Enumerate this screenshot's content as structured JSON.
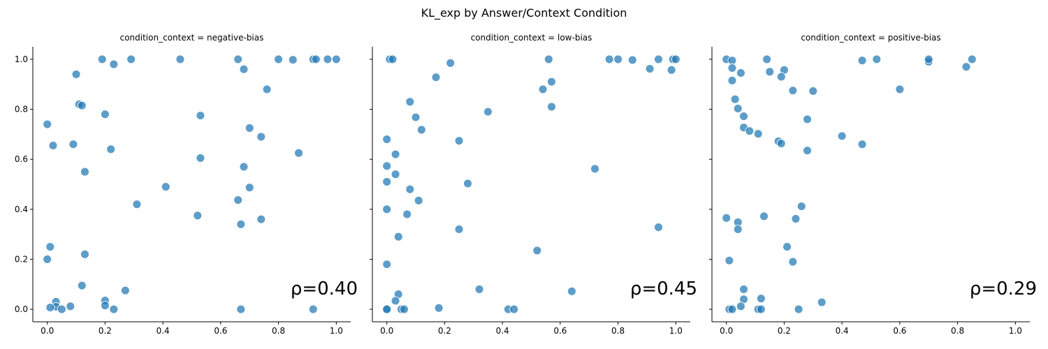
{
  "title": "KL_exp by Answer/Context Condition",
  "colors": {
    "marker": "#1f77b4"
  },
  "chart_data": [
    {
      "type": "scatter",
      "title": "condition_context = negative-bias",
      "xlim": [
        -0.05,
        1.05
      ],
      "ylim": [
        -0.05,
        1.05
      ],
      "xticks": [
        "0.0",
        "0.2",
        "0.4",
        "0.6",
        "0.8",
        "1.0"
      ],
      "yticks": [
        "0.0",
        "0.2",
        "0.4",
        "0.6",
        "0.8",
        "1.0"
      ],
      "annotation": "ρ=0.40",
      "x": [
        0.19,
        0.29,
        0.46,
        0.66,
        0.8,
        0.85,
        0.92,
        0.93,
        0.97,
        1.0,
        0.23,
        0.1,
        0.68,
        0.76,
        0.11,
        0.12,
        0.2,
        0.53,
        0.0,
        0.7,
        0.74,
        0.02,
        0.09,
        0.22,
        0.87,
        0.53,
        0.68,
        0.13,
        0.41,
        0.7,
        0.66,
        0.31,
        0.52,
        0.74,
        0.67,
        0.01,
        0.13,
        0.0,
        0.12,
        0.27,
        0.2,
        0.03,
        0.03,
        0.2,
        0.08,
        0.01,
        0.05,
        0.23,
        0.67,
        0.92
      ],
      "y": [
        1.0,
        1.0,
        1.0,
        1.0,
        1.0,
        0.998,
        1.0,
        1.0,
        1.0,
        1.0,
        0.98,
        0.94,
        0.96,
        0.88,
        0.82,
        0.815,
        0.78,
        0.775,
        0.74,
        0.725,
        0.69,
        0.655,
        0.66,
        0.64,
        0.625,
        0.605,
        0.57,
        0.55,
        0.49,
        0.487,
        0.437,
        0.42,
        0.375,
        0.36,
        0.34,
        0.25,
        0.22,
        0.2,
        0.095,
        0.075,
        0.035,
        0.03,
        0.01,
        0.015,
        0.012,
        0.007,
        0.0,
        0.0,
        0.0,
        0.0
      ]
    },
    {
      "type": "scatter",
      "title": "condition_context = low-bias",
      "xlim": [
        -0.05,
        1.05
      ],
      "ylim": [
        -0.05,
        1.05
      ],
      "xticks": [
        "0.0",
        "0.2",
        "0.4",
        "0.6",
        "0.8",
        "1.0"
      ],
      "yticks": [
        "0.0",
        "0.2",
        "0.4",
        "0.6",
        "0.8",
        "1.0"
      ],
      "annotation": "ρ=0.45",
      "x": [
        0.01,
        0.02,
        0.22,
        0.56,
        0.77,
        0.8,
        0.85,
        0.91,
        0.94,
        0.99,
        1.0,
        0.985,
        0.17,
        0.57,
        0.54,
        0.57,
        0.08,
        0.35,
        0.1,
        0.12,
        0.0,
        0.25,
        0.03,
        0.03,
        0.72,
        0.0,
        0.0,
        0.28,
        0.08,
        0.11,
        0.0,
        0.07,
        0.25,
        0.04,
        0.94,
        0.52,
        0.0,
        0.32,
        0.64,
        0.04,
        0.03,
        0.18,
        0.42,
        0.44,
        0.0,
        0.0,
        0.05,
        0.06
      ],
      "y": [
        1.0,
        1.0,
        0.985,
        1.0,
        1.0,
        1.0,
        0.997,
        0.962,
        1.0,
        1.0,
        1.0,
        0.957,
        0.928,
        0.91,
        0.88,
        0.81,
        0.83,
        0.79,
        0.768,
        0.718,
        0.68,
        0.674,
        0.62,
        0.54,
        0.562,
        0.573,
        0.51,
        0.503,
        0.48,
        0.435,
        0.4,
        0.38,
        0.32,
        0.29,
        0.328,
        0.235,
        0.18,
        0.08,
        0.072,
        0.06,
        0.034,
        0.005,
        0.0,
        0.0,
        0.0,
        0.0,
        0.0,
        0.0
      ]
    },
    {
      "type": "scatter",
      "title": "condition_context = positive-bias",
      "xlim": [
        -0.05,
        1.05
      ],
      "ylim": [
        -0.05,
        1.05
      ],
      "xticks": [
        "0.0",
        "0.2",
        "0.4",
        "0.6",
        "0.8",
        "1.0"
      ],
      "yticks": [
        "0.0",
        "0.2",
        "0.4",
        "0.6",
        "0.8",
        "1.0"
      ],
      "annotation": "ρ=0.29",
      "x": [
        0.0,
        0.02,
        0.14,
        0.47,
        0.52,
        0.7,
        0.7,
        0.85,
        0.02,
        0.05,
        0.15,
        0.2,
        0.19,
        0.83,
        0.02,
        0.23,
        0.3,
        0.6,
        0.03,
        0.04,
        0.06,
        0.06,
        0.08,
        0.11,
        0.4,
        0.28,
        0.18,
        0.19,
        0.47,
        0.28,
        0.0,
        0.04,
        0.04,
        0.13,
        0.24,
        0.26,
        0.21,
        0.01,
        0.23,
        0.06,
        0.12,
        0.06,
        0.33,
        0.05,
        0.01,
        0.02,
        0.11,
        0.12,
        0.25
      ],
      "y": [
        1.0,
        0.995,
        1.0,
        0.995,
        1.0,
        0.99,
        1.0,
        1.0,
        0.965,
        0.945,
        0.95,
        0.957,
        0.93,
        0.97,
        0.915,
        0.875,
        0.873,
        0.88,
        0.84,
        0.803,
        0.772,
        0.727,
        0.713,
        0.702,
        0.693,
        0.76,
        0.672,
        0.663,
        0.66,
        0.635,
        0.365,
        0.348,
        0.32,
        0.372,
        0.362,
        0.412,
        0.25,
        0.195,
        0.19,
        0.08,
        0.043,
        0.04,
        0.028,
        0.012,
        0.0,
        0.0,
        0.0,
        0.0,
        0.0
      ]
    }
  ]
}
